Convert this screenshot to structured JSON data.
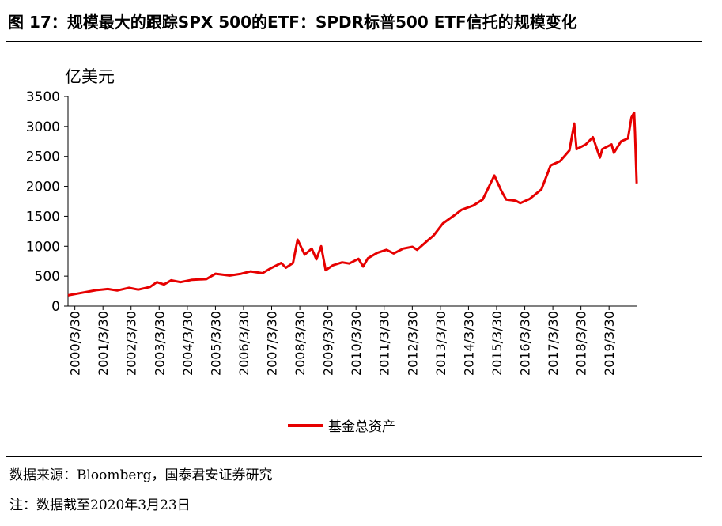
{
  "figure": {
    "title": "图 17：规模最大的跟踪SPX 500的ETF：SPDR标普500 ETF信托的规模变化",
    "source": "数据来源：Bloomberg，国泰君安证券研究",
    "note": "注：数据截至2020年3月23日"
  },
  "colors": {
    "series": "#e60000",
    "axis": "#000000"
  },
  "chart_data": {
    "type": "line",
    "title": "",
    "xlabel": "",
    "ylabel": "亿美元",
    "ylim": [
      0,
      3500
    ],
    "yticks": [
      0,
      500,
      1000,
      1500,
      2000,
      2500,
      3000,
      3500
    ],
    "xlim": [
      "2000-01-01",
      "2020-04-01"
    ],
    "xticks": [
      "2000/3/30",
      "2001/3/30",
      "2002/3/30",
      "2003/3/30",
      "2004/3/30",
      "2005/3/30",
      "2006/3/30",
      "2007/3/30",
      "2008/3/30",
      "2009/3/30",
      "2010/3/30",
      "2011/3/30",
      "2012/3/30",
      "2013/3/30",
      "2014/3/30",
      "2015/3/30",
      "2016/3/30",
      "2017/3/30",
      "2018/3/30",
      "2019/3/30"
    ],
    "grid": false,
    "legend": "bottom-center",
    "series": [
      {
        "name": "基金总资产",
        "points": [
          [
            "2000-01-01",
            180
          ],
          [
            "2000-06-01",
            215
          ],
          [
            "2001-01-01",
            265
          ],
          [
            "2001-06-01",
            285
          ],
          [
            "2001-10-01",
            260
          ],
          [
            "2002-03-01",
            305
          ],
          [
            "2002-07-01",
            275
          ],
          [
            "2002-12-01",
            320
          ],
          [
            "2003-03-01",
            400
          ],
          [
            "2003-06-01",
            360
          ],
          [
            "2003-09-01",
            430
          ],
          [
            "2004-01-01",
            400
          ],
          [
            "2004-06-01",
            440
          ],
          [
            "2004-12-01",
            450
          ],
          [
            "2005-04-01",
            540
          ],
          [
            "2005-10-01",
            510
          ],
          [
            "2006-03-01",
            540
          ],
          [
            "2006-07-01",
            580
          ],
          [
            "2006-12-01",
            550
          ],
          [
            "2007-03-01",
            620
          ],
          [
            "2007-08-01",
            720
          ],
          [
            "2007-10-01",
            640
          ],
          [
            "2008-01-01",
            720
          ],
          [
            "2008-03-01",
            1110
          ],
          [
            "2008-06-01",
            860
          ],
          [
            "2008-09-01",
            960
          ],
          [
            "2008-11-01",
            780
          ],
          [
            "2009-01-01",
            1000
          ],
          [
            "2009-03-01",
            600
          ],
          [
            "2009-06-01",
            680
          ],
          [
            "2009-10-01",
            730
          ],
          [
            "2010-01-01",
            710
          ],
          [
            "2010-05-01",
            790
          ],
          [
            "2010-07-01",
            660
          ],
          [
            "2010-09-01",
            800
          ],
          [
            "2011-01-01",
            890
          ],
          [
            "2011-05-01",
            940
          ],
          [
            "2011-08-01",
            880
          ],
          [
            "2011-12-01",
            960
          ],
          [
            "2012-04-01",
            990
          ],
          [
            "2012-06-01",
            940
          ],
          [
            "2012-10-01",
            1080
          ],
          [
            "2013-01-01",
            1180
          ],
          [
            "2013-05-01",
            1380
          ],
          [
            "2013-10-01",
            1520
          ],
          [
            "2014-01-01",
            1610
          ],
          [
            "2014-06-01",
            1680
          ],
          [
            "2014-10-01",
            1780
          ],
          [
            "2015-03-01",
            2180
          ],
          [
            "2015-06-01",
            1920
          ],
          [
            "2015-08-01",
            1780
          ],
          [
            "2015-12-01",
            1760
          ],
          [
            "2016-02-01",
            1720
          ],
          [
            "2016-06-01",
            1790
          ],
          [
            "2016-11-01",
            1950
          ],
          [
            "2017-03-01",
            2350
          ],
          [
            "2017-07-01",
            2420
          ],
          [
            "2017-11-01",
            2600
          ],
          [
            "2018-01-01",
            3050
          ],
          [
            "2018-02-01",
            2620
          ],
          [
            "2018-06-01",
            2700
          ],
          [
            "2018-09-01",
            2820
          ],
          [
            "2018-12-01",
            2480
          ],
          [
            "2019-01-01",
            2620
          ],
          [
            "2019-05-01",
            2700
          ],
          [
            "2019-06-01",
            2560
          ],
          [
            "2019-09-01",
            2750
          ],
          [
            "2019-12-01",
            2800
          ],
          [
            "2020-01-15",
            3150
          ],
          [
            "2020-02-19",
            3230
          ],
          [
            "2020-03-01",
            2900
          ],
          [
            "2020-03-12",
            2450
          ],
          [
            "2020-03-23",
            2050
          ]
        ]
      }
    ]
  }
}
